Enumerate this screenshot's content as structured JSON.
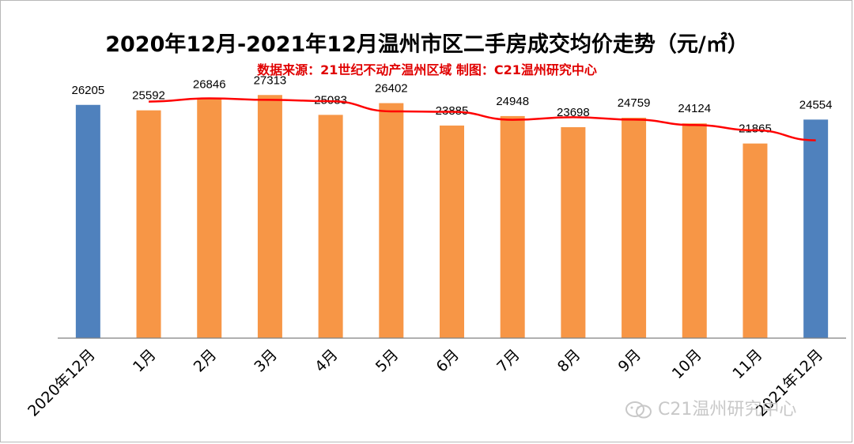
{
  "title": "2020年12月-2021年12月温州市区二手房成交均价走势（元/㎡）",
  "subtitle": "数据来源：21世纪不动产温州区域  制图：C21温州研究中心",
  "watermark": "C21温州研究中心",
  "watermark_icon": "wechat-icon",
  "colors": {
    "highlight_bar": "#4f81bd",
    "regular_bar": "#f79646",
    "trend_line": "#ff0000",
    "axis": "#808080"
  },
  "chart_data": {
    "type": "bar",
    "categories": [
      "2020年12月",
      "1月",
      "2月",
      "3月",
      "4月",
      "5月",
      "6月",
      "7月",
      "8月",
      "9月",
      "10月",
      "11月",
      "2021年12月"
    ],
    "values": [
      26205,
      25592,
      26846,
      27313,
      25083,
      26402,
      23885,
      24948,
      23698,
      24759,
      24124,
      21865,
      24554
    ],
    "highlighted_indices": [
      0,
      12
    ],
    "trend_line": {
      "type": "line",
      "from_index": 1,
      "to_index": 12,
      "smoothing": "moving-average"
    },
    "ylim": [
      0,
      30000
    ],
    "grid": false,
    "legend": "none",
    "xlabel": "",
    "ylabel": ""
  }
}
